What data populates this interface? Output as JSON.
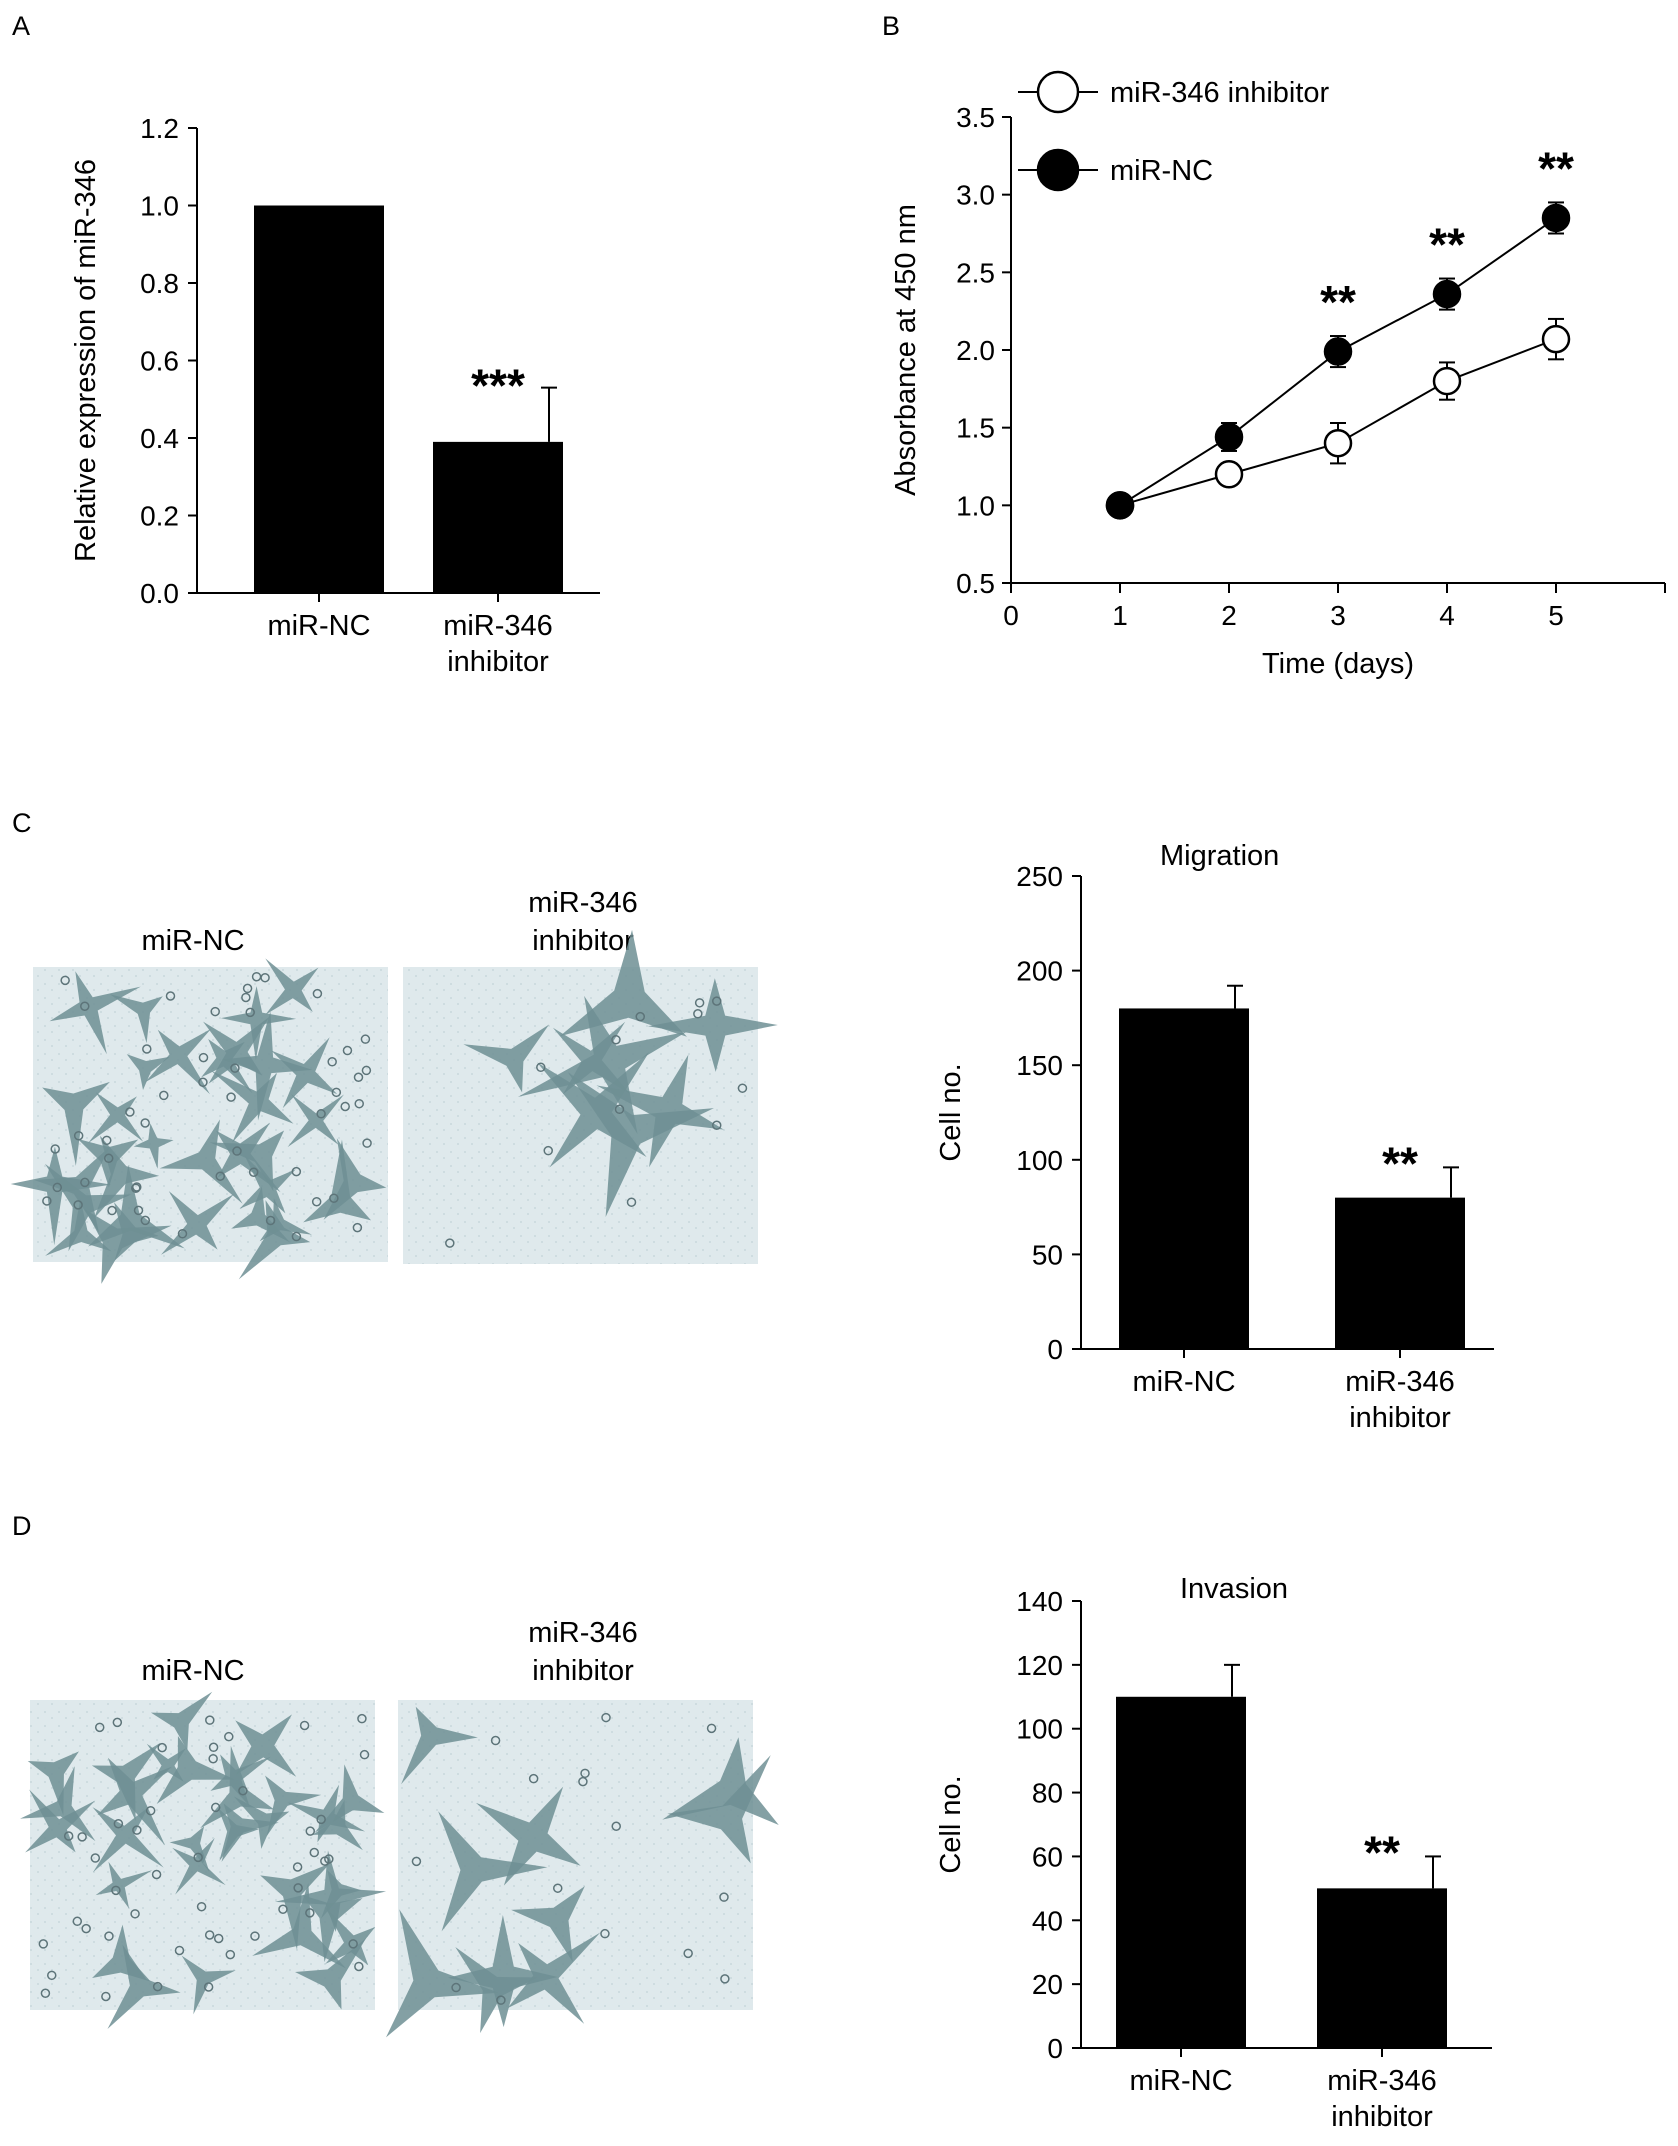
{
  "panels": {
    "A": "A",
    "B": "B",
    "C": "C",
    "D": "D"
  },
  "images": {
    "C": {
      "left_label": [
        "miR-NC"
      ],
      "right_label": [
        "miR-346",
        "inhibitor"
      ]
    },
    "D": {
      "left_label": [
        "miR-NC"
      ],
      "right_label": [
        "miR-346",
        "inhibitor"
      ]
    }
  },
  "chart_data": [
    {
      "id": "A",
      "type": "bar",
      "title": "",
      "xlabel": "",
      "ylabel": "Relative expression of miR-346",
      "categories": [
        [
          "miR-NC"
        ],
        [
          "miR-346",
          "inhibitor"
        ]
      ],
      "values": [
        1.0,
        0.39
      ],
      "errors": [
        0,
        0.14
      ],
      "significance": [
        "",
        "***"
      ],
      "ylim": [
        0,
        1.2
      ],
      "yticks": [
        "0.0",
        "0.2",
        "0.4",
        "0.6",
        "0.8",
        "1.0",
        "1.2"
      ],
      "bar_color": "#000000"
    },
    {
      "id": "B",
      "type": "line",
      "title": "",
      "xlabel": "Time (days)",
      "ylabel": "Absorbance at 450 nm",
      "xlim": [
        0,
        6
      ],
      "ylim": [
        0.5,
        3.5
      ],
      "xticks": [
        "0",
        "1",
        "2",
        "3",
        "4",
        "5"
      ],
      "yticks": [
        "0.5",
        "1.0",
        "1.5",
        "2.0",
        "2.5",
        "3.0",
        "3.5"
      ],
      "x": [
        1,
        2,
        3,
        4,
        5
      ],
      "series": [
        {
          "name": "miR-346 inhibitor",
          "marker": "open-circle",
          "color": "#ffffff",
          "values": [
            1.0,
            1.2,
            1.4,
            1.8,
            2.07
          ],
          "errors": [
            0,
            0.05,
            0.13,
            0.12,
            0.13
          ]
        },
        {
          "name": "miR-NC",
          "marker": "filled-circle",
          "color": "#000000",
          "values": [
            1.0,
            1.44,
            1.99,
            2.36,
            2.85
          ],
          "errors": [
            0,
            0.09,
            0.1,
            0.1,
            0.1
          ]
        }
      ],
      "annotations": [
        {
          "x": 3,
          "text": "**"
        },
        {
          "x": 4,
          "text": "**"
        },
        {
          "x": 5,
          "text": "**"
        }
      ],
      "legend_position": "top-left"
    },
    {
      "id": "C",
      "type": "bar",
      "title": "Migration",
      "xlabel": "",
      "ylabel": "Cell no.",
      "categories": [
        [
          "miR-NC"
        ],
        [
          "miR-346",
          "inhibitor"
        ]
      ],
      "values": [
        180,
        80
      ],
      "errors": [
        12,
        16
      ],
      "significance": [
        "",
        "**"
      ],
      "ylim": [
        0,
        250
      ],
      "yticks": [
        "0",
        "50",
        "100",
        "150",
        "200",
        "250"
      ],
      "bar_color": "#000000"
    },
    {
      "id": "D",
      "type": "bar",
      "title": "Invasion",
      "xlabel": "",
      "ylabel": "Cell no.",
      "categories": [
        [
          "miR-NC"
        ],
        [
          "miR-346",
          "inhibitor"
        ]
      ],
      "values": [
        110,
        50
      ],
      "errors": [
        10,
        10
      ],
      "significance": [
        "",
        "**"
      ],
      "ylim": [
        0,
        140
      ],
      "yticks": [
        "0",
        "20",
        "40",
        "60",
        "80",
        "100",
        "120",
        "140"
      ],
      "bar_color": "#000000"
    }
  ]
}
